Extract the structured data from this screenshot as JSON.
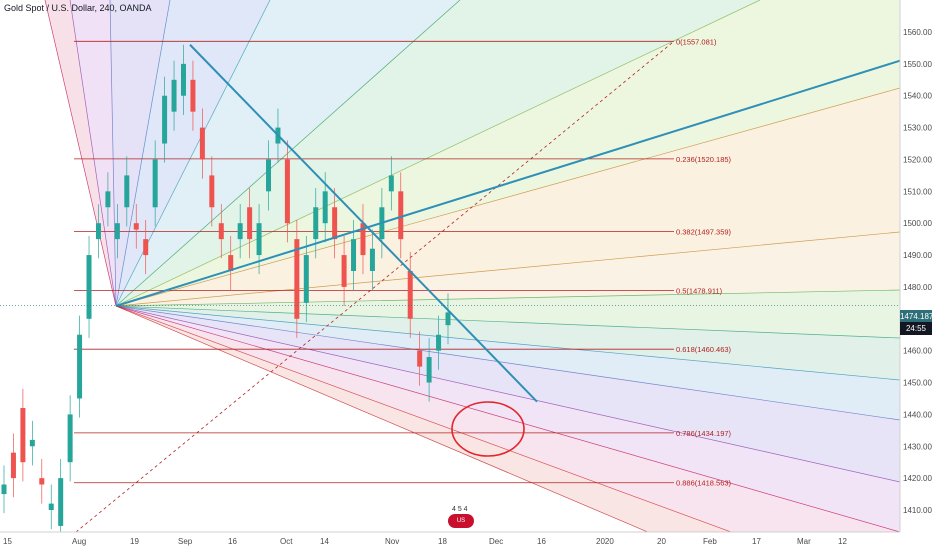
{
  "header": {
    "title": "Gold Spot / U.S. Dollar, 240, OANDA"
  },
  "price_axis": {
    "ticks": [
      "1560.000",
      "1550.000",
      "1540.000",
      "1530.000",
      "1520.000",
      "1510.000",
      "1500.000",
      "1490.000",
      "1480.000",
      "1470.000",
      "1460.000",
      "1450.000",
      "1440.000",
      "1430.000",
      "1420.000",
      "1410.000"
    ],
    "last_price": "1474.187",
    "countdown": "24:55"
  },
  "time_axis": {
    "ticks": [
      "15",
      "Aug",
      "19",
      "Sep",
      "16",
      "Oct",
      "14",
      "Nov",
      "18",
      "Dec",
      "16",
      "2020",
      "20",
      "Feb",
      "17",
      "Mar",
      "12"
    ]
  },
  "fib_levels": [
    {
      "label": "0(1557.081)",
      "price": 1557.081
    },
    {
      "label": "0.236(1520.185)",
      "price": 1520.185
    },
    {
      "label": "0.382(1497.359)",
      "price": 1497.359
    },
    {
      "label": "0.5(1478.911)",
      "price": 1478.911
    },
    {
      "label": "0.618(1460.463)",
      "price": 1460.463
    },
    {
      "label": "0.786(1434.197)",
      "price": 1434.197
    },
    {
      "label": "0.886(1418.563)",
      "price": 1418.563
    }
  ],
  "badge": {
    "label": "4 5 4",
    "text": "US"
  },
  "colors": {
    "candle_up": "#26a69a",
    "candle_down": "#ef5350",
    "fib_line": "#b22222",
    "trend_line": "#2f8fb6"
  },
  "chart_data": {
    "type": "candlestick",
    "title": "Gold Spot / U.S. Dollar, 240, OANDA",
    "ylim": [
      1400,
      1565
    ],
    "x_ticks": [
      "15",
      "Aug",
      "19",
      "Sep",
      "16",
      "Oct",
      "14",
      "Nov",
      "18",
      "Dec",
      "16",
      "2020",
      "20",
      "Feb",
      "17",
      "Mar",
      "12"
    ],
    "y_ticks": [
      1560,
      1550,
      1540,
      1530,
      1520,
      1510,
      1500,
      1490,
      1480,
      1470,
      1460,
      1450,
      1440,
      1430,
      1420,
      1410
    ],
    "last_price": 1474.187,
    "fib_retracement": [
      1557.081,
      1520.185,
      1497.359,
      1478.911,
      1460.463,
      1434.197,
      1418.563
    ],
    "price_path": [
      [
        1415,
        1418
      ],
      [
        1428,
        1420
      ],
      [
        1442,
        1425
      ],
      [
        1430,
        1432
      ],
      [
        1420,
        1418
      ],
      [
        1410,
        1412
      ],
      [
        1405,
        1420
      ],
      [
        1425,
        1440
      ],
      [
        1445,
        1465
      ],
      [
        1470,
        1490
      ],
      [
        1495,
        1500
      ],
      [
        1505,
        1510
      ],
      [
        1495,
        1500
      ],
      [
        1505,
        1515
      ],
      [
        1500,
        1498
      ],
      [
        1495,
        1490
      ],
      [
        1505,
        1520
      ],
      [
        1525,
        1540
      ],
      [
        1535,
        1545
      ],
      [
        1540,
        1550
      ],
      [
        1545,
        1535
      ],
      [
        1530,
        1520
      ],
      [
        1515,
        1505
      ],
      [
        1500,
        1495
      ],
      [
        1490,
        1485
      ],
      [
        1495,
        1500
      ],
      [
        1505,
        1495
      ],
      [
        1490,
        1500
      ],
      [
        1510,
        1520
      ],
      [
        1525,
        1530
      ],
      [
        1520,
        1500
      ],
      [
        1495,
        1470
      ],
      [
        1475,
        1490
      ],
      [
        1495,
        1505
      ],
      [
        1500,
        1510
      ],
      [
        1505,
        1495
      ],
      [
        1490,
        1480
      ],
      [
        1485,
        1495
      ],
      [
        1500,
        1490
      ],
      [
        1485,
        1492
      ],
      [
        1495,
        1505
      ],
      [
        1510,
        1515
      ],
      [
        1510,
        1495
      ],
      [
        1485,
        1470
      ],
      [
        1460,
        1455
      ],
      [
        1450,
        1458
      ],
      [
        1460,
        1465
      ],
      [
        1468,
        1472
      ]
    ]
  }
}
